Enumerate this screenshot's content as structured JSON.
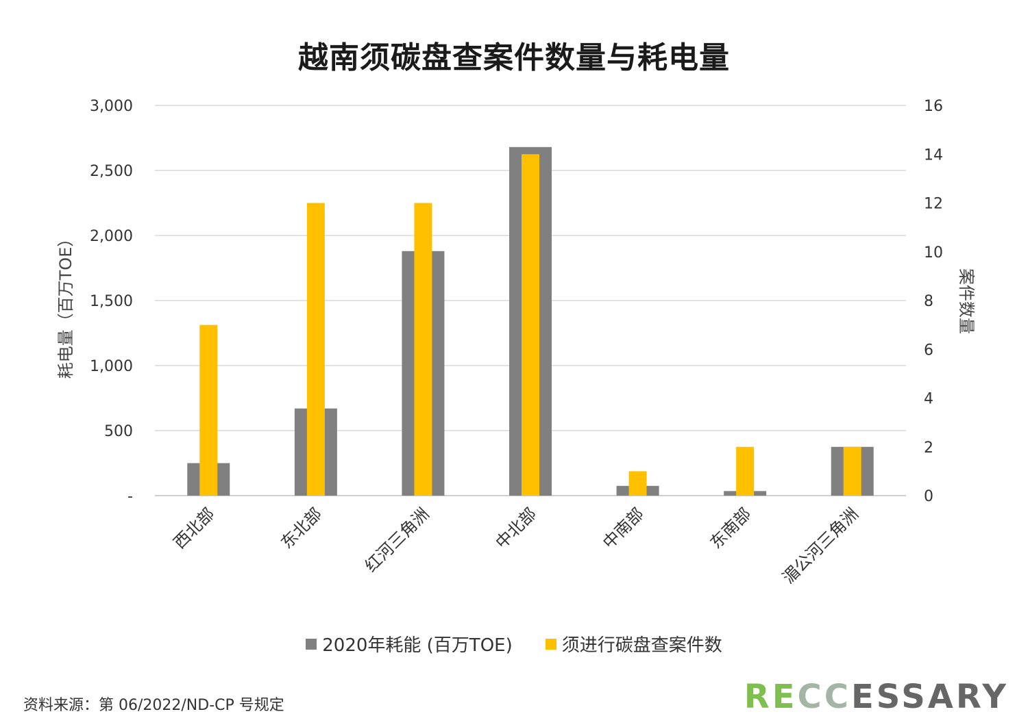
{
  "chart_data": {
    "type": "bar",
    "title": "越南须碳盘查案件数量与耗电量",
    "categories": [
      "西北部",
      "东北部",
      "红河三角洲",
      "中北部",
      "中南部",
      "东南部",
      "湄公河三角洲"
    ],
    "series": [
      {
        "name": "2020年耗能 (百万TOE)",
        "axis": "left",
        "color": "#808080",
        "values": [
          250,
          670,
          1880,
          2680,
          75,
          35,
          375
        ]
      },
      {
        "name": "须进行碳盘查案件数",
        "axis": "right",
        "color": "#FFC000",
        "values": [
          7,
          12,
          12,
          14,
          1,
          2,
          2
        ]
      }
    ],
    "ylabel": "耗电量（百万TOE）",
    "y2label": "案件数量",
    "ylim": [
      0,
      3000
    ],
    "y2lim": [
      0,
      16
    ],
    "yticks": [
      "-",
      "500",
      "1,000",
      "1,500",
      "2,000",
      "2,500",
      "3,000"
    ],
    "y2ticks": [
      "0",
      "2",
      "4",
      "6",
      "8",
      "10",
      "12",
      "14",
      "16"
    ],
    "grid": true,
    "legend": "bottom"
  },
  "source": "资料来源：第 06/2022/ND-CP 号规定",
  "logo": "RECCESSARY"
}
